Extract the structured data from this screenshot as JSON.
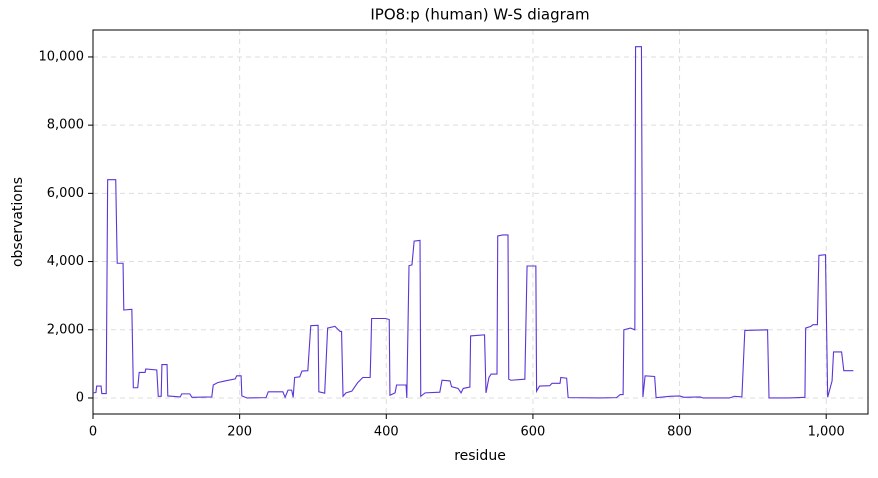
{
  "chart_data": {
    "type": "line",
    "title": "IPO8:p (human) W-S diagram",
    "xlabel": "residue",
    "ylabel": "observations",
    "x": [
      0,
      4,
      5,
      11,
      12,
      18,
      20,
      31,
      33,
      41,
      42,
      53,
      55,
      61,
      63,
      71,
      72,
      87,
      89,
      93,
      94,
      101,
      102,
      119,
      121,
      132,
      135,
      162,
      164,
      170,
      180,
      194,
      196,
      202,
      203,
      210,
      236,
      239,
      259,
      262,
      266,
      271,
      273,
      275,
      282,
      285,
      293,
      297,
      307,
      308,
      316,
      320,
      330,
      337,
      339,
      341,
      345,
      353,
      361,
      368,
      378,
      379,
      380,
      399,
      404,
      405,
      412,
      414,
      427,
      428,
      431,
      435,
      438,
      446,
      447,
      453,
      473,
      476,
      487,
      489,
      498,
      502,
      505,
      514,
      515,
      534,
      536,
      540,
      543,
      551,
      552,
      559,
      566,
      567,
      570,
      589,
      592,
      604,
      605,
      609,
      623,
      626,
      637,
      638,
      646,
      648,
      691,
      714,
      719,
      723,
      724,
      733,
      739,
      740,
      748,
      750,
      753,
      766,
      768,
      787,
      800,
      806,
      828,
      832,
      868,
      875,
      885,
      889,
      920,
      922,
      950,
      971,
      972,
      979,
      982,
      988,
      990,
      999,
      1002,
      1008,
      1010,
      1021,
      1024,
      1037
    ],
    "values": [
      150,
      160,
      350,
      350,
      130,
      130,
      6400,
      6400,
      3950,
      3950,
      2580,
      2600,
      300,
      300,
      750,
      750,
      850,
      820,
      50,
      50,
      980,
      980,
      60,
      30,
      120,
      120,
      20,
      30,
      380,
      450,
      500,
      560,
      650,
      650,
      60,
      0,
      10,
      180,
      180,
      20,
      230,
      230,
      20,
      600,
      620,
      790,
      800,
      2120,
      2130,
      180,
      140,
      2050,
      2100,
      1950,
      1950,
      50,
      150,
      200,
      450,
      600,
      600,
      1400,
      2330,
      2330,
      2300,
      80,
      150,
      380,
      380,
      0,
      3880,
      3900,
      4600,
      4620,
      50,
      150,
      170,
      520,
      500,
      330,
      280,
      150,
      280,
      320,
      1820,
      1850,
      150,
      600,
      700,
      700,
      4750,
      4780,
      4780,
      550,
      520,
      550,
      3870,
      3870,
      200,
      350,
      360,
      430,
      430,
      600,
      580,
      10,
      0,
      10,
      100,
      100,
      2000,
      2050,
      2000,
      10300,
      10300,
      30,
      650,
      630,
      10,
      50,
      60,
      20,
      30,
      0,
      0,
      50,
      30,
      1980,
      2000,
      0,
      0,
      20,
      2050,
      2100,
      2150,
      2150,
      4180,
      4200,
      20,
      500,
      1350,
      1350,
      800,
      800
    ],
    "color": "#5c35d6",
    "xlim": [
      0,
      1057
    ],
    "ylim": [
      -470,
      10790
    ],
    "xticks": [
      0,
      200,
      400,
      600,
      800,
      {
        "value": 1000,
        "label": "1,000"
      }
    ],
    "yticks": [
      0,
      {
        "value": 2000,
        "label": "2,000"
      },
      {
        "value": 4000,
        "label": "4,000"
      },
      {
        "value": 6000,
        "label": "6,000"
      },
      {
        "value": 8000,
        "label": "8,000"
      },
      {
        "value": 10000,
        "label": "10,000"
      }
    ],
    "grid": true
  }
}
